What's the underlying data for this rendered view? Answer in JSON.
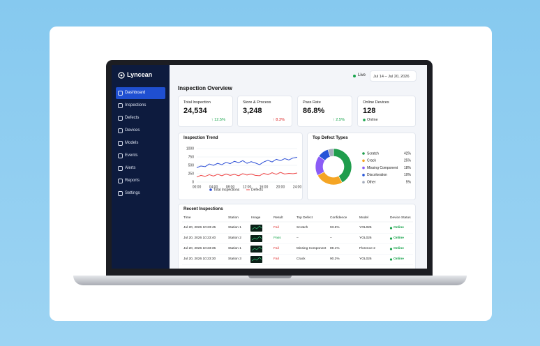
{
  "sidebar": {
    "brand": "Lyncean",
    "nav": [
      "Dashboard",
      "Inspections",
      "Defects",
      "Devices",
      "Models",
      "Events",
      "Alerts",
      "Reports",
      "Settings"
    ]
  },
  "header": {
    "status": "Live",
    "date_range": "Jul 14 – Jul 20, 2026",
    "title": "Inspection Overview"
  },
  "cards": [
    {
      "label": "Total Inspection",
      "value": "24,534",
      "change": "↑ 12.5%",
      "change_color": "#16a34a"
    },
    {
      "label": "Store & Process",
      "value": "3,248",
      "change": "↑ 8.3%",
      "change_color": "#dc2626"
    },
    {
      "label": "Pass Rate",
      "value": "86.8%",
      "change": "↑ 2.5%",
      "change_color": "#16a34a"
    },
    {
      "label": "Online Devices",
      "value": "128",
      "status": "Online",
      "status_color": "#16a34a"
    }
  ],
  "chart_data": [
    {
      "type": "line",
      "title": "Inspection Trend",
      "categories": [
        "00:00",
        null,
        null,
        null,
        "04:00",
        null,
        null,
        null,
        "08:00",
        null,
        null,
        null,
        "12:00",
        null,
        null,
        null,
        "16:00",
        null,
        null,
        null,
        "20:00",
        null,
        null,
        null,
        "24:00"
      ],
      "series": [
        {
          "name": "Total Inspections",
          "color": "#2d4fd6",
          "values": [
            430,
            480,
            460,
            540,
            500,
            560,
            520,
            590,
            550,
            620,
            580,
            640,
            560,
            610,
            570,
            520,
            600,
            650,
            600,
            680,
            640,
            700,
            660,
            720,
            740
          ]
        },
        {
          "name": "Defects",
          "color": "#ef4444",
          "values": [
            150,
            200,
            170,
            220,
            180,
            230,
            190,
            240,
            200,
            230,
            190,
            250,
            210,
            240,
            200,
            190,
            260,
            220,
            280,
            230,
            290,
            240,
            260,
            250,
            270
          ]
        }
      ],
      "ylim": [
        0,
        1000
      ],
      "yticks": [
        0,
        250,
        500,
        750,
        1000
      ],
      "grid": true
    },
    {
      "type": "pie",
      "title": "Top Defect Types",
      "categories": [
        "Scratch",
        "Crack",
        "Missing Component",
        "Discoloration",
        "Other"
      ],
      "values": [
        42,
        25,
        18,
        10,
        5
      ],
      "value_labels": [
        "42%",
        "25%",
        "18%",
        "10%",
        "5%"
      ],
      "colors": [
        "#1f9d4c",
        "#f5a524",
        "#8b5cf6",
        "#2554d8",
        "#a3abbb"
      ]
    }
  ],
  "table": {
    "title": "Recent Inspections",
    "columns": [
      "Time",
      "Station",
      "Image",
      "Result",
      "Top Defect",
      "Confidence",
      "Model",
      "Device Status"
    ],
    "rows": [
      {
        "time": "Jul 20, 2026 10:23:45",
        "station": "Station 1",
        "result": "Fail",
        "result_color": "#dc2626",
        "top_defect": "Scratch",
        "confidence": "93.6%",
        "model": "YOL026",
        "status": "Online"
      },
      {
        "time": "Jul 20, 2026 10:23:40",
        "station": "Station 2",
        "result": "Pass",
        "result_color": "#16a34a",
        "top_defect": "–",
        "confidence": "–",
        "model": "YOL026",
        "status": "Online"
      },
      {
        "time": "Jul 20, 2026 10:23:35",
        "station": "Station 1",
        "result": "Fail",
        "result_color": "#dc2626",
        "top_defect": "Missing Component",
        "confidence": "89.1%",
        "model": "Florence-2",
        "status": "Online"
      },
      {
        "time": "Jul 20, 2026 10:23:30",
        "station": "Station 3",
        "result": "Fail",
        "result_color": "#dc2626",
        "top_defect": "Crack",
        "confidence": "90.2%",
        "model": "YOL026",
        "status": "Online"
      }
    ],
    "status_color": "#16a34a"
  }
}
